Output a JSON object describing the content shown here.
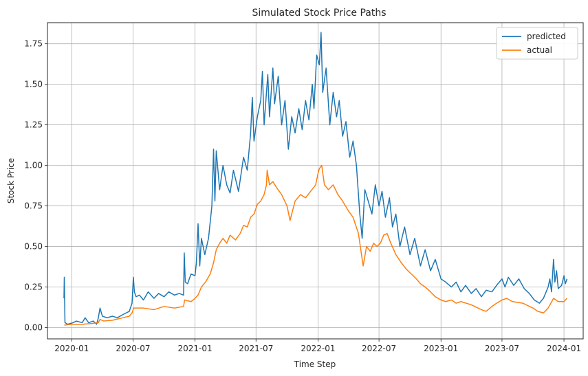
{
  "chart_data": {
    "type": "line",
    "title": "Simulated Stock Price Paths",
    "xlabel": "Time Step",
    "ylabel": "Stock Price",
    "xlim": [
      "2019-10-21",
      "2024-02-27"
    ],
    "ylim": [
      -0.07,
      1.88
    ],
    "grid": true,
    "legend_position": "top-right",
    "x_ticks": [
      {
        "date": "2020-01-01",
        "label": "2020-01"
      },
      {
        "date": "2020-07-01",
        "label": "2020-07"
      },
      {
        "date": "2021-01-01",
        "label": "2021-01"
      },
      {
        "date": "2021-07-01",
        "label": "2021-07"
      },
      {
        "date": "2022-01-01",
        "label": "2022-01"
      },
      {
        "date": "2022-07-01",
        "label": "2022-07"
      },
      {
        "date": "2023-01-01",
        "label": "2023-01"
      },
      {
        "date": "2023-07-01",
        "label": "2023-07"
      },
      {
        "date": "2024-01-01",
        "label": "2024-01"
      }
    ],
    "y_ticks": [
      {
        "value": 0.0,
        "label": "0.00"
      },
      {
        "value": 0.25,
        "label": "0.25"
      },
      {
        "value": 0.5,
        "label": "0.50"
      },
      {
        "value": 0.75,
        "label": "0.75"
      },
      {
        "value": 1.0,
        "label": "1.00"
      },
      {
        "value": 1.25,
        "label": "1.25"
      },
      {
        "value": 1.5,
        "label": "1.50"
      },
      {
        "value": 1.75,
        "label": "1.75"
      }
    ],
    "series": [
      {
        "name": "predicted",
        "color": "#1f77b4",
        "points": [
          [
            "2019-12-09",
            0.18
          ],
          [
            "2019-12-10",
            0.31
          ],
          [
            "2019-12-12",
            0.03
          ],
          [
            "2019-12-20",
            0.02
          ],
          [
            "2020-01-05",
            0.03
          ],
          [
            "2020-01-15",
            0.04
          ],
          [
            "2020-02-01",
            0.03
          ],
          [
            "2020-02-10",
            0.06
          ],
          [
            "2020-02-20",
            0.03
          ],
          [
            "2020-03-05",
            0.04
          ],
          [
            "2020-03-15",
            0.02
          ],
          [
            "2020-03-20",
            0.06
          ],
          [
            "2020-03-25",
            0.12
          ],
          [
            "2020-04-01",
            0.07
          ],
          [
            "2020-04-15",
            0.06
          ],
          [
            "2020-05-01",
            0.07
          ],
          [
            "2020-05-15",
            0.06
          ],
          [
            "2020-06-01",
            0.08
          ],
          [
            "2020-06-20",
            0.1
          ],
          [
            "2020-06-28",
            0.15
          ],
          [
            "2020-07-02",
            0.31
          ],
          [
            "2020-07-05",
            0.22
          ],
          [
            "2020-07-10",
            0.19
          ],
          [
            "2020-07-20",
            0.2
          ],
          [
            "2020-08-01",
            0.17
          ],
          [
            "2020-08-15",
            0.22
          ],
          [
            "2020-09-01",
            0.18
          ],
          [
            "2020-09-15",
            0.21
          ],
          [
            "2020-10-01",
            0.19
          ],
          [
            "2020-10-15",
            0.22
          ],
          [
            "2020-11-01",
            0.2
          ],
          [
            "2020-11-15",
            0.21
          ],
          [
            "2020-11-28",
            0.2
          ],
          [
            "2020-11-30",
            0.46
          ],
          [
            "2020-12-03",
            0.28
          ],
          [
            "2020-12-10",
            0.27
          ],
          [
            "2020-12-20",
            0.33
          ],
          [
            "2021-01-01",
            0.32
          ],
          [
            "2021-01-05",
            0.4
          ],
          [
            "2021-01-10",
            0.64
          ],
          [
            "2021-01-15",
            0.38
          ],
          [
            "2021-01-20",
            0.55
          ],
          [
            "2021-01-30",
            0.45
          ],
          [
            "2021-02-10",
            0.55
          ],
          [
            "2021-02-20",
            0.75
          ],
          [
            "2021-02-25",
            1.1
          ],
          [
            "2021-03-01",
            0.78
          ],
          [
            "2021-03-05",
            1.09
          ],
          [
            "2021-03-15",
            0.85
          ],
          [
            "2021-03-25",
            1.0
          ],
          [
            "2021-04-05",
            0.88
          ],
          [
            "2021-04-15",
            0.83
          ],
          [
            "2021-04-25",
            0.97
          ],
          [
            "2021-05-10",
            0.84
          ],
          [
            "2021-05-25",
            1.05
          ],
          [
            "2021-06-05",
            0.97
          ],
          [
            "2021-06-15",
            1.2
          ],
          [
            "2021-06-20",
            1.42
          ],
          [
            "2021-06-25",
            1.15
          ],
          [
            "2021-07-05",
            1.3
          ],
          [
            "2021-07-15",
            1.4
          ],
          [
            "2021-07-20",
            1.58
          ],
          [
            "2021-07-25",
            1.25
          ],
          [
            "2021-08-01",
            1.45
          ],
          [
            "2021-08-05",
            1.56
          ],
          [
            "2021-08-10",
            1.3
          ],
          [
            "2021-08-20",
            1.6
          ],
          [
            "2021-08-25",
            1.38
          ],
          [
            "2021-09-05",
            1.55
          ],
          [
            "2021-09-15",
            1.25
          ],
          [
            "2021-09-25",
            1.4
          ],
          [
            "2021-10-05",
            1.1
          ],
          [
            "2021-10-15",
            1.3
          ],
          [
            "2021-10-25",
            1.2
          ],
          [
            "2021-11-05",
            1.35
          ],
          [
            "2021-11-15",
            1.22
          ],
          [
            "2021-11-25",
            1.4
          ],
          [
            "2021-12-05",
            1.28
          ],
          [
            "2021-12-15",
            1.5
          ],
          [
            "2021-12-20",
            1.35
          ],
          [
            "2021-12-28",
            1.68
          ],
          [
            "2022-01-05",
            1.62
          ],
          [
            "2022-01-10",
            1.82
          ],
          [
            "2022-01-15",
            1.45
          ],
          [
            "2022-01-25",
            1.6
          ],
          [
            "2022-02-05",
            1.25
          ],
          [
            "2022-02-15",
            1.45
          ],
          [
            "2022-02-25",
            1.3
          ],
          [
            "2022-03-05",
            1.4
          ],
          [
            "2022-03-15",
            1.18
          ],
          [
            "2022-03-25",
            1.27
          ],
          [
            "2022-04-05",
            1.05
          ],
          [
            "2022-04-15",
            1.15
          ],
          [
            "2022-04-25",
            1.0
          ],
          [
            "2022-05-05",
            0.7
          ],
          [
            "2022-05-12",
            0.55
          ],
          [
            "2022-05-20",
            0.85
          ],
          [
            "2022-05-30",
            0.78
          ],
          [
            "2022-06-10",
            0.7
          ],
          [
            "2022-06-20",
            0.88
          ],
          [
            "2022-07-01",
            0.75
          ],
          [
            "2022-07-10",
            0.84
          ],
          [
            "2022-07-20",
            0.68
          ],
          [
            "2022-08-01",
            0.8
          ],
          [
            "2022-08-10",
            0.62
          ],
          [
            "2022-08-20",
            0.7
          ],
          [
            "2022-09-01",
            0.5
          ],
          [
            "2022-09-15",
            0.62
          ],
          [
            "2022-10-01",
            0.45
          ],
          [
            "2022-10-15",
            0.55
          ],
          [
            "2022-11-01",
            0.38
          ],
          [
            "2022-11-15",
            0.48
          ],
          [
            "2022-12-01",
            0.35
          ],
          [
            "2022-12-15",
            0.42
          ],
          [
            "2023-01-01",
            0.3
          ],
          [
            "2023-01-15",
            0.28
          ],
          [
            "2023-02-01",
            0.25
          ],
          [
            "2023-02-15",
            0.28
          ],
          [
            "2023-03-01",
            0.22
          ],
          [
            "2023-03-15",
            0.26
          ],
          [
            "2023-04-01",
            0.21
          ],
          [
            "2023-04-15",
            0.24
          ],
          [
            "2023-05-01",
            0.19
          ],
          [
            "2023-05-15",
            0.23
          ],
          [
            "2023-06-01",
            0.22
          ],
          [
            "2023-06-15",
            0.26
          ],
          [
            "2023-07-01",
            0.3
          ],
          [
            "2023-07-10",
            0.25
          ],
          [
            "2023-07-20",
            0.31
          ],
          [
            "2023-08-05",
            0.26
          ],
          [
            "2023-08-20",
            0.3
          ],
          [
            "2023-09-05",
            0.24
          ],
          [
            "2023-09-20",
            0.21
          ],
          [
            "2023-10-05",
            0.17
          ],
          [
            "2023-10-20",
            0.15
          ],
          [
            "2023-11-01",
            0.18
          ],
          [
            "2023-11-15",
            0.25
          ],
          [
            "2023-11-20",
            0.3
          ],
          [
            "2023-11-25",
            0.22
          ],
          [
            "2023-12-01",
            0.42
          ],
          [
            "2023-12-05",
            0.28
          ],
          [
            "2023-12-10",
            0.35
          ],
          [
            "2023-12-15",
            0.24
          ],
          [
            "2023-12-25",
            0.26
          ],
          [
            "2024-01-01",
            0.32
          ],
          [
            "2024-01-05",
            0.27
          ],
          [
            "2024-01-10",
            0.3
          ]
        ]
      },
      {
        "name": "actual",
        "color": "#ff7f0e",
        "points": [
          [
            "2019-12-10",
            0.015
          ],
          [
            "2020-01-01",
            0.02
          ],
          [
            "2020-02-01",
            0.02
          ],
          [
            "2020-03-01",
            0.025
          ],
          [
            "2020-03-20",
            0.03
          ],
          [
            "2020-03-25",
            0.05
          ],
          [
            "2020-04-05",
            0.04
          ],
          [
            "2020-05-01",
            0.045
          ],
          [
            "2020-06-01",
            0.06
          ],
          [
            "2020-06-20",
            0.07
          ],
          [
            "2020-06-28",
            0.09
          ],
          [
            "2020-07-03",
            0.12
          ],
          [
            "2020-08-01",
            0.12
          ],
          [
            "2020-09-01",
            0.11
          ],
          [
            "2020-10-01",
            0.13
          ],
          [
            "2020-11-01",
            0.12
          ],
          [
            "2020-11-28",
            0.13
          ],
          [
            "2020-12-01",
            0.17
          ],
          [
            "2020-12-20",
            0.16
          ],
          [
            "2021-01-01",
            0.18
          ],
          [
            "2021-01-10",
            0.2
          ],
          [
            "2021-01-20",
            0.25
          ],
          [
            "2021-02-01",
            0.28
          ],
          [
            "2021-02-15",
            0.33
          ],
          [
            "2021-02-25",
            0.4
          ],
          [
            "2021-03-05",
            0.48
          ],
          [
            "2021-03-15",
            0.52
          ],
          [
            "2021-03-25",
            0.55
          ],
          [
            "2021-04-05",
            0.52
          ],
          [
            "2021-04-15",
            0.57
          ],
          [
            "2021-05-01",
            0.54
          ],
          [
            "2021-05-15",
            0.58
          ],
          [
            "2021-05-25",
            0.63
          ],
          [
            "2021-06-05",
            0.62
          ],
          [
            "2021-06-15",
            0.68
          ],
          [
            "2021-06-25",
            0.7
          ],
          [
            "2021-07-05",
            0.76
          ],
          [
            "2021-07-15",
            0.78
          ],
          [
            "2021-07-25",
            0.82
          ],
          [
            "2021-08-01",
            0.88
          ],
          [
            "2021-08-03",
            0.97
          ],
          [
            "2021-08-10",
            0.88
          ],
          [
            "2021-08-20",
            0.9
          ],
          [
            "2021-09-01",
            0.86
          ],
          [
            "2021-09-15",
            0.82
          ],
          [
            "2021-10-01",
            0.75
          ],
          [
            "2021-10-10",
            0.66
          ],
          [
            "2021-10-15",
            0.7
          ],
          [
            "2021-10-25",
            0.78
          ],
          [
            "2021-11-10",
            0.82
          ],
          [
            "2021-11-25",
            0.8
          ],
          [
            "2021-12-10",
            0.84
          ],
          [
            "2021-12-25",
            0.88
          ],
          [
            "2022-01-01",
            0.95
          ],
          [
            "2022-01-05",
            0.98
          ],
          [
            "2022-01-12",
            1.0
          ],
          [
            "2022-01-20",
            0.88
          ],
          [
            "2022-02-01",
            0.85
          ],
          [
            "2022-02-15",
            0.88
          ],
          [
            "2022-03-01",
            0.82
          ],
          [
            "2022-03-15",
            0.78
          ],
          [
            "2022-04-01",
            0.72
          ],
          [
            "2022-04-15",
            0.68
          ],
          [
            "2022-05-01",
            0.58
          ],
          [
            "2022-05-10",
            0.45
          ],
          [
            "2022-05-15",
            0.38
          ],
          [
            "2022-05-25",
            0.5
          ],
          [
            "2022-06-05",
            0.47
          ],
          [
            "2022-06-15",
            0.52
          ],
          [
            "2022-06-25",
            0.5
          ],
          [
            "2022-07-05",
            0.52
          ],
          [
            "2022-07-15",
            0.57
          ],
          [
            "2022-07-25",
            0.58
          ],
          [
            "2022-08-05",
            0.52
          ],
          [
            "2022-08-20",
            0.45
          ],
          [
            "2022-09-05",
            0.4
          ],
          [
            "2022-09-20",
            0.36
          ],
          [
            "2022-10-05",
            0.33
          ],
          [
            "2022-10-20",
            0.3
          ],
          [
            "2022-11-01",
            0.27
          ],
          [
            "2022-11-15",
            0.25
          ],
          [
            "2022-12-01",
            0.22
          ],
          [
            "2022-12-15",
            0.19
          ],
          [
            "2023-01-01",
            0.17
          ],
          [
            "2023-01-15",
            0.16
          ],
          [
            "2023-02-01",
            0.17
          ],
          [
            "2023-02-15",
            0.15
          ],
          [
            "2023-03-01",
            0.16
          ],
          [
            "2023-04-01",
            0.14
          ],
          [
            "2023-05-01",
            0.11
          ],
          [
            "2023-05-15",
            0.1
          ],
          [
            "2023-06-01",
            0.13
          ],
          [
            "2023-06-15",
            0.15
          ],
          [
            "2023-07-01",
            0.17
          ],
          [
            "2023-07-15",
            0.18
          ],
          [
            "2023-08-01",
            0.16
          ],
          [
            "2023-09-01",
            0.15
          ],
          [
            "2023-10-01",
            0.12
          ],
          [
            "2023-10-15",
            0.1
          ],
          [
            "2023-11-01",
            0.09
          ],
          [
            "2023-11-15",
            0.12
          ],
          [
            "2023-12-01",
            0.18
          ],
          [
            "2023-12-15",
            0.16
          ],
          [
            "2024-01-01",
            0.16
          ],
          [
            "2024-01-10",
            0.18
          ]
        ]
      }
    ]
  }
}
